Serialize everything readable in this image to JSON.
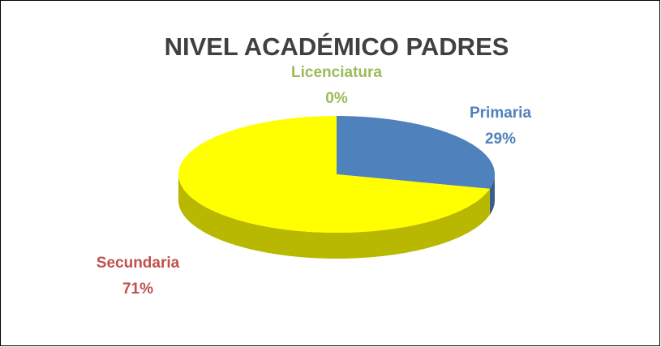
{
  "chart_data": {
    "type": "pie",
    "title": "NIVEL ACADÉMICO PADRES",
    "categories": [
      "Primaria",
      "Secundaria",
      "Licenciatura"
    ],
    "values": [
      29,
      71,
      0
    ],
    "value_labels": [
      "29%",
      "71%",
      "0%"
    ],
    "colors": [
      "#4f81bd",
      "#ffff00",
      "#9bbb59"
    ],
    "label_colors": [
      "#4f81bd",
      "#c0504d",
      "#9bbb59"
    ]
  }
}
